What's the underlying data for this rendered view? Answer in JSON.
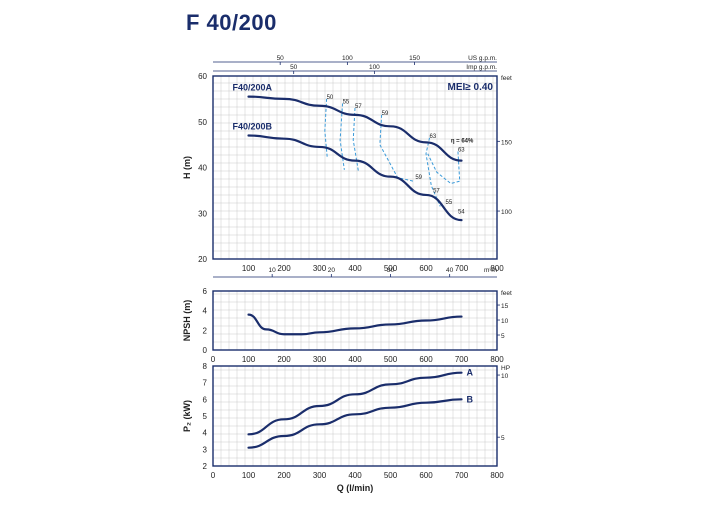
{
  "title": "F 40/200",
  "colors": {
    "curve": "#1a2d6b",
    "efficiency": "#3a9ad9",
    "grid": "#c9c9c9",
    "frame": "#1a2d6b",
    "text": "#222222"
  },
  "chart_data": [
    {
      "type": "line",
      "panel": "head",
      "ylabel": "H (m)",
      "ylim": [
        20,
        60
      ],
      "yticks": [
        20,
        30,
        40,
        50,
        60
      ],
      "xlim": [
        0,
        800
      ],
      "xticks": [
        100,
        200,
        300,
        400,
        500,
        600,
        700,
        800
      ],
      "annotation": "MEI≥ 0.40",
      "top_axes": [
        {
          "label": "US g.p.m.",
          "ticks": [
            50,
            100,
            150
          ]
        },
        {
          "label": "Imp g.p.m.",
          "ticks": [
            50,
            100
          ]
        }
      ],
      "bottom_secondary_axis": {
        "label": "m³/h",
        "ticks": [
          10,
          20,
          30,
          40
        ]
      },
      "right_axis": {
        "label": "feet",
        "ticks": [
          100,
          150
        ]
      },
      "series": [
        {
          "name": "F40/200A",
          "x": [
            100,
            200,
            300,
            400,
            500,
            600,
            700
          ],
          "y": [
            55.5,
            55.0,
            53.5,
            51.5,
            49.0,
            45.5,
            41.5
          ]
        },
        {
          "name": "F40/200B",
          "x": [
            100,
            200,
            300,
            400,
            500,
            600,
            700
          ],
          "y": [
            47.0,
            46.3,
            44.5,
            41.5,
            38.0,
            34.0,
            28.5
          ]
        }
      ],
      "efficiency_labels": [
        {
          "text": "50",
          "x": 320,
          "y": 55.0
        },
        {
          "text": "55",
          "x": 365,
          "y": 54.0
        },
        {
          "text": "57",
          "x": 400,
          "y": 53.0
        },
        {
          "text": "59",
          "x": 475,
          "y": 51.5
        },
        {
          "text": "63",
          "x": 610,
          "y": 46.5
        },
        {
          "text": "η = 64%",
          "x": 670,
          "y": 45.5
        },
        {
          "text": "63",
          "x": 690,
          "y": 43.5
        },
        {
          "text": "59",
          "x": 570,
          "y": 37.5
        },
        {
          "text": "57",
          "x": 620,
          "y": 34.5
        },
        {
          "text": "55",
          "x": 655,
          "y": 32.0
        },
        {
          "text": "54",
          "x": 690,
          "y": 30.0
        }
      ]
    },
    {
      "type": "line",
      "panel": "npsh",
      "ylabel": "NPSH (m)",
      "ylim": [
        0,
        6
      ],
      "yticks": [
        0,
        2,
        4,
        6
      ],
      "xlim": [
        0,
        800
      ],
      "xticks": [
        0,
        100,
        200,
        300,
        400,
        500,
        600,
        700,
        800
      ],
      "right_axis": {
        "label": "feet",
        "ticks": [
          5,
          10,
          15
        ]
      },
      "series": [
        {
          "name": "",
          "x": [
            100,
            150,
            200,
            250,
            300,
            400,
            500,
            600,
            700
          ],
          "y": [
            3.6,
            2.1,
            1.6,
            1.6,
            1.8,
            2.2,
            2.6,
            3.0,
            3.4
          ]
        }
      ]
    },
    {
      "type": "line",
      "panel": "power",
      "ylabel": "P₂ (kW)",
      "xlabel": "Q (l/min)",
      "ylim": [
        2,
        8
      ],
      "yticks": [
        2,
        3,
        4,
        5,
        6,
        7,
        8
      ],
      "xlim": [
        0,
        800
      ],
      "xticks": [
        0,
        100,
        200,
        300,
        400,
        500,
        600,
        700,
        800
      ],
      "right_axis": {
        "label": "HP",
        "ticks": [
          5,
          10
        ]
      },
      "series": [
        {
          "name": "A",
          "x": [
            100,
            200,
            300,
            400,
            500,
            600,
            700
          ],
          "y": [
            3.9,
            4.8,
            5.6,
            6.3,
            6.9,
            7.3,
            7.6
          ]
        },
        {
          "name": "B",
          "x": [
            100,
            200,
            300,
            400,
            500,
            600,
            700
          ],
          "y": [
            3.1,
            3.8,
            4.5,
            5.1,
            5.5,
            5.8,
            6.0
          ]
        }
      ]
    }
  ]
}
